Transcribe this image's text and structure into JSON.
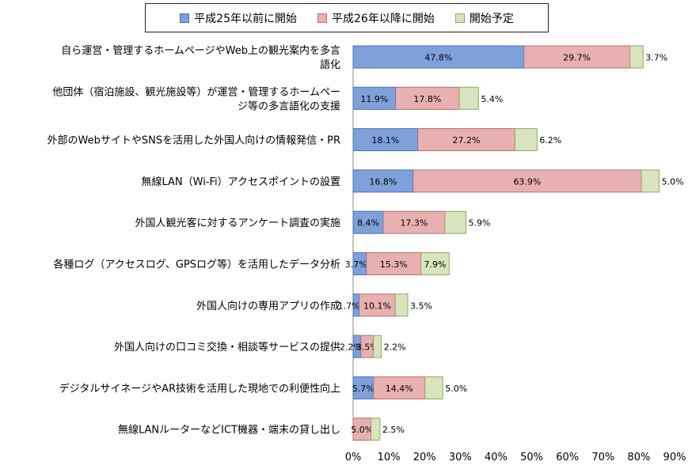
{
  "legend": {
    "items": [
      {
        "label": "平成25年以前に開始",
        "color": "#7EA1DC",
        "stroke": "#4A6FAF"
      },
      {
        "label": "平成26年以降に開始",
        "color": "#E8B0B0",
        "stroke": "#B76E6E"
      },
      {
        "label": "開始予定",
        "color": "#D7E4BD",
        "stroke": "#93A86A"
      }
    ]
  },
  "chart_data": {
    "type": "bar",
    "orientation": "horizontal",
    "stacked": true,
    "categories": [
      "自ら運営・管理するホームページやWeb上の観光案内を多言語化",
      "他団体（宿泊施設、観光施設等）が運営・管理するホームページ等の多言語化の支援",
      "外部のWebサイトやSNSを活用した外国人向けの情報発信・PR",
      "無線LAN（Wi-Fi）アクセスポイントの設置",
      "外国人観光客に対するアンケート調査の実施",
      "各種ログ（アクセスログ、GPSログ等）を活用したデータ分析",
      "外国人向けの専用アプリの作成",
      "外国人向けの口コミ交換・相談等サービスの提供",
      "デジタルサイネージやAR技術を活用した現地での利便性向上",
      "無線LANルーターなどICT機器・端末の貸し出し"
    ],
    "category_lines": [
      [
        "自ら運営・管理するホームページやWeb上の観光案内を多言",
        "語化"
      ],
      [
        "他団体（宿泊施設、観光施設等）が運営・管理するホームペー",
        "ジ等の多言語化の支援"
      ],
      [
        "外部のWebサイトやSNSを活用した外国人向けの情報発信・PR"
      ],
      [
        "無線LAN（Wi-Fi）アクセスポイントの設置"
      ],
      [
        "外国人観光客に対するアンケート調査の実施"
      ],
      [
        "各種ログ（アクセスログ、GPSログ等）を活用したデータ分析"
      ],
      [
        "外国人向けの専用アプリの作成"
      ],
      [
        "外国人向けの口コミ交換・相談等サービスの提供"
      ],
      [
        "デジタルサイネージやAR技術を活用した現地での利便性向上"
      ],
      [
        "無線LANルーターなどICT機器・端末の貸し出し"
      ]
    ],
    "series": [
      {
        "name": "平成25年以前に開始",
        "values": [
          47.8,
          11.9,
          18.1,
          16.8,
          8.4,
          3.7,
          1.7,
          2.2,
          5.7,
          0.0
        ],
        "labels": [
          "47.8%",
          "11.9%",
          "18.1%",
          "16.8%",
          "8.4%",
          "3.7%",
          "1.7%",
          "2.2%",
          "5.7%",
          ""
        ]
      },
      {
        "name": "平成26年以降に開始",
        "values": [
          29.7,
          17.8,
          27.2,
          63.9,
          17.3,
          15.3,
          10.1,
          3.5,
          14.4,
          5.0
        ],
        "labels": [
          "29.7%",
          "17.8%",
          "27.2%",
          "63.9%",
          "17.3%",
          "15.3%",
          "10.1%",
          "3.5%",
          "14.4%",
          "5.0%"
        ]
      },
      {
        "name": "開始予定",
        "values": [
          3.7,
          5.4,
          6.2,
          5.0,
          5.9,
          7.9,
          3.5,
          2.2,
          5.0,
          2.5
        ],
        "labels": [
          "3.7%",
          "5.4%",
          "6.2%",
          "5.0%",
          "5.9%",
          "7.9%",
          "3.5%",
          "2.2%",
          "5.0%",
          "2.5%"
        ]
      }
    ],
    "xlim": [
      0,
      90
    ],
    "x_ticks": [
      "0%",
      "10%",
      "20%",
      "30%",
      "40%",
      "50%",
      "60%",
      "70%",
      "80%",
      "90%"
    ],
    "grid": false,
    "legend_position": "top"
  }
}
